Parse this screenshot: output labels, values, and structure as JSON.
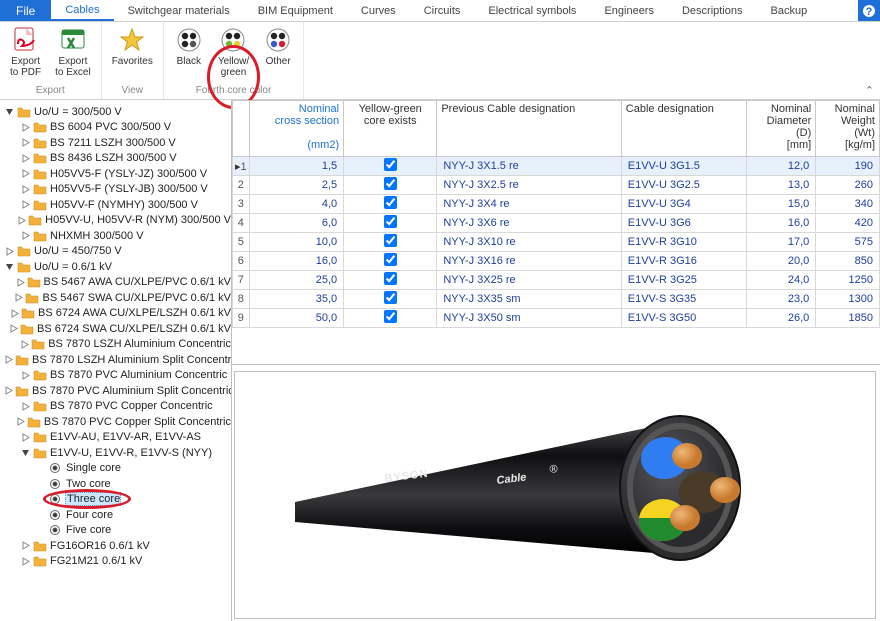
{
  "menu": {
    "file": "File",
    "tabs": [
      "Cables",
      "Switchgear materials",
      "BIM Equipment",
      "Curves",
      "Circuits",
      "Electrical symbols",
      "Engineers",
      "Descriptions",
      "Backup"
    ],
    "activeIndex": 0
  },
  "ribbon": {
    "groups": [
      {
        "label": "Export",
        "buttons": [
          {
            "name": "export-pdf",
            "label": "Export\nto PDF",
            "icon": "pdf"
          },
          {
            "name": "export-excel",
            "label": "Export\nto Excel",
            "icon": "excel"
          }
        ]
      },
      {
        "label": "View",
        "buttons": [
          {
            "name": "favorites",
            "label": "Favorites",
            "icon": "star"
          }
        ]
      },
      {
        "label": "Fourth core  color",
        "buttons": [
          {
            "name": "black-core",
            "label": "Black",
            "icon": "core-black"
          },
          {
            "name": "yellow-green-core",
            "label": "Yellow/\ngreen",
            "icon": "core-yg"
          },
          {
            "name": "other-core",
            "label": "Other",
            "icon": "core-other"
          }
        ]
      }
    ],
    "circled": "yellow-green-core"
  },
  "tree": {
    "rows": [
      {
        "d": 0,
        "exp": "-",
        "t": "folder",
        "label": "Uo/U = 300/500 V"
      },
      {
        "d": 1,
        "exp": ">",
        "t": "folder",
        "label": "BS 6004 PVC 300/500 V"
      },
      {
        "d": 1,
        "exp": ">",
        "t": "folder",
        "label": "BS 7211 LSZH 300/500 V"
      },
      {
        "d": 1,
        "exp": ">",
        "t": "folder",
        "label": "BS 8436 LSZH  300/500 V"
      },
      {
        "d": 1,
        "exp": ">",
        "t": "folder",
        "label": "H05VV5-F (YSLY-JZ) 300/500 V"
      },
      {
        "d": 1,
        "exp": ">",
        "t": "folder",
        "label": "H05VV5-F  (YSLY-JB)  300/500 V"
      },
      {
        "d": 1,
        "exp": ">",
        "t": "folder",
        "label": "H05VV-F (NYMHY)  300/500 V"
      },
      {
        "d": 1,
        "exp": ">",
        "t": "folder",
        "label": "H05VV-U, H05VV-R  (NYM)  300/500 V"
      },
      {
        "d": 1,
        "exp": ">",
        "t": "folder",
        "label": "NHXMH 300/500 V"
      },
      {
        "d": 0,
        "exp": ">",
        "t": "folder",
        "label": "Uo/U = 450/750 V"
      },
      {
        "d": 0,
        "exp": "-",
        "t": "folder",
        "label": "Uo/U = 0.6/1 kV"
      },
      {
        "d": 1,
        "exp": ">",
        "t": "folder",
        "label": "BS 5467 AWA CU/XLPE/PVC 0.6/1 kV"
      },
      {
        "d": 1,
        "exp": ">",
        "t": "folder",
        "label": "BS 5467 SWA CU/XLPE/PVC 0.6/1 kV"
      },
      {
        "d": 1,
        "exp": ">",
        "t": "folder",
        "label": "BS 6724 AWA CU/XLPE/LSZH 0.6/1 kV"
      },
      {
        "d": 1,
        "exp": ">",
        "t": "folder",
        "label": "BS 6724 SWA CU/XLPE/LSZH 0.6/1 kV"
      },
      {
        "d": 1,
        "exp": ">",
        "t": "folder",
        "label": "BS 7870 LSZH Aluminium Concentric"
      },
      {
        "d": 1,
        "exp": ">",
        "t": "folder",
        "label": "BS 7870 LSZH Aluminium Split Concentric"
      },
      {
        "d": 1,
        "exp": ">",
        "t": "folder",
        "label": "BS 7870 PVC Aluminium Concentric"
      },
      {
        "d": 1,
        "exp": ">",
        "t": "folder",
        "label": "BS 7870 PVC Aluminium Split Concentric"
      },
      {
        "d": 1,
        "exp": ">",
        "t": "folder",
        "label": "BS 7870 PVC Copper Concentric"
      },
      {
        "d": 1,
        "exp": ">",
        "t": "folder",
        "label": "BS 7870 PVC Copper Split Concentric"
      },
      {
        "d": 1,
        "exp": ">",
        "t": "folder",
        "label": "E1VV-AU, E1VV-AR, E1VV-AS"
      },
      {
        "d": 1,
        "exp": "-",
        "t": "folder",
        "label": "E1VV-U, E1VV-R, E1VV-S  (NYY)"
      },
      {
        "d": 2,
        "exp": " ",
        "t": "dot",
        "label": "Single core"
      },
      {
        "d": 2,
        "exp": " ",
        "t": "dot",
        "label": "Two core"
      },
      {
        "d": 2,
        "exp": " ",
        "t": "dot",
        "label": "Three core",
        "selected": true
      },
      {
        "d": 2,
        "exp": " ",
        "t": "dot",
        "label": "Four core"
      },
      {
        "d": 2,
        "exp": " ",
        "t": "dot",
        "label": "Five core"
      },
      {
        "d": 1,
        "exp": ">",
        "t": "folder",
        "label": "FG16OR16 0.6/1 kV"
      },
      {
        "d": 1,
        "exp": ">",
        "t": "folder",
        "label": "FG21M21 0.6/1 kV"
      }
    ],
    "circled": "Three core"
  },
  "table": {
    "headers": [
      {
        "line1": "Nominal",
        "line2": "cross section",
        "line3": "",
        "line4": "(mm2)",
        "blue": true,
        "align": "right"
      },
      {
        "line1": "Yellow-green",
        "line2": "core exists",
        "align": "center"
      },
      {
        "line1": "Previous Cable designation",
        "align": "left"
      },
      {
        "line1": "Cable designation",
        "align": "left"
      },
      {
        "line1": "Nominal",
        "line2": "Diameter",
        "line3": "(D)",
        "line4": "[mm]",
        "align": "right"
      },
      {
        "line1": "Nominal",
        "line2": "Weight",
        "line3": "(Wt)",
        "line4": "[kg/m]",
        "align": "right"
      }
    ],
    "rows": [
      {
        "n": 1,
        "cs": "1,5",
        "yg": true,
        "prev": "NYY-J 3X1.5 re",
        "desig": "E1VV-U 3G1.5",
        "d": "12,0",
        "w": "190",
        "sel": true
      },
      {
        "n": 2,
        "cs": "2,5",
        "yg": true,
        "prev": "NYY-J 3X2.5 re",
        "desig": "E1VV-U 3G2.5",
        "d": "13,0",
        "w": "260"
      },
      {
        "n": 3,
        "cs": "4,0",
        "yg": true,
        "prev": "NYY-J 3X4 re",
        "desig": "E1VV-U 3G4",
        "d": "15,0",
        "w": "340"
      },
      {
        "n": 4,
        "cs": "6,0",
        "yg": true,
        "prev": "NYY-J 3X6 re",
        "desig": "E1VV-U 3G6",
        "d": "16,0",
        "w": "420"
      },
      {
        "n": 5,
        "cs": "10,0",
        "yg": true,
        "prev": "NYY-J 3X10 re",
        "desig": "E1VV-R 3G10",
        "d": "17,0",
        "w": "575"
      },
      {
        "n": 6,
        "cs": "16,0",
        "yg": true,
        "prev": "NYY-J 3X16 re",
        "desig": "E1VV-R 3G16",
        "d": "20,0",
        "w": "850"
      },
      {
        "n": 7,
        "cs": "25,0",
        "yg": true,
        "prev": "NYY-J 3X25 re",
        "desig": "E1VV-R 3G25",
        "d": "24,0",
        "w": "1250"
      },
      {
        "n": 8,
        "cs": "35,0",
        "yg": true,
        "prev": "NYY-J 3X35 sm",
        "desig": "E1VV-S 3G35",
        "d": "23,0",
        "w": "1300"
      },
      {
        "n": 9,
        "cs": "50,0",
        "yg": true,
        "prev": "NYY-J 3X50 sm",
        "desig": "E1VV-S 3G50",
        "d": "26,0",
        "w": "1850"
      }
    ]
  },
  "preview": {
    "brand": "BYSON",
    "brandSub": "Cable",
    "colors": {
      "jacket": "#0f0f12",
      "inner": "#2b2b2e",
      "copper": "#c87a2f",
      "copperLight": "#f0b878",
      "core1": "#2f7df0",
      "core2": "#4a3a28",
      "core3a": "#f4d321",
      "core3b": "#1f8a2e",
      "brandText": "#e8e8e8",
      "reg": "#e8e8e8"
    }
  }
}
